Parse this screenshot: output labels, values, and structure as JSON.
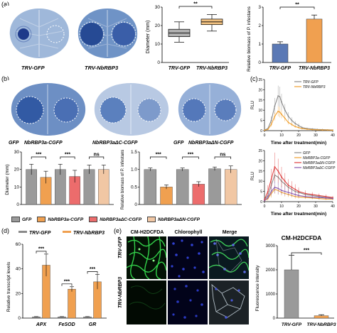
{
  "panel_labels": {
    "a": "(a)",
    "b": "(b)",
    "c": "(c)",
    "d": "(d)",
    "e": "(e)"
  },
  "panel_a": {
    "leaf_captions": [
      "TRV-GFP",
      "TRV-NbRBP3"
    ],
    "boxplot": {
      "ylabel": "Diameter (mm)",
      "yticks": [
        "0",
        "10",
        "20",
        "30"
      ],
      "categories": [
        "TRV-GFP",
        "TRV-NbRBP3"
      ],
      "significance": "**",
      "colors": [
        "#b0b0b0",
        "#f0c080"
      ]
    },
    "bar": {
      "ylabel": "Relative biomass of P. infestans",
      "yticks": [
        "0",
        "1",
        "2",
        "3"
      ],
      "categories": [
        "TRV-GFP",
        "TRV-NbRBP3"
      ],
      "significance": "**",
      "colors": [
        "#5b79b5",
        "#f0a050"
      ]
    }
  },
  "panel_b": {
    "leaf_captions": [
      "GFP",
      "NbRBP3a-CGFP",
      "NbRBP3aΔC-CGFP",
      "GFP",
      "NbRBP3aΔN-CGFP"
    ],
    "diameter": {
      "ylabel": "Diameter (mm)",
      "yticks": [
        "0",
        "10",
        "20",
        "30"
      ],
      "significance": [
        "***",
        "***",
        "ns"
      ]
    },
    "biomass": {
      "ylabel": "Relative biomass of P. infestans",
      "yticks": [
        "0",
        "0.5",
        "1.0",
        "1.5"
      ],
      "significance": [
        "***",
        "***",
        "ns"
      ]
    },
    "legend": [
      {
        "label": "GFP",
        "color": "#9a9a9a"
      },
      {
        "label": "NbRBP3a-CGFP",
        "color": "#f0a050"
      },
      {
        "label": "NbRBP3aΔC-CGFP",
        "color": "#ec6c6c"
      },
      {
        "label": "NbRBP3aΔN-CGFP",
        "color": "#f1c7a4"
      }
    ]
  },
  "panel_c": {
    "top": {
      "ylabel": "RLU",
      "yticks": [
        "0",
        "5",
        "10",
        "15",
        "20",
        "25"
      ],
      "xticks": [
        "0",
        "10",
        "20",
        "30",
        "40"
      ],
      "xlabel": "Time after treatment(min)",
      "legend": [
        {
          "label": "TRV-GFP",
          "color": "#8a8a8a"
        },
        {
          "label": "TRV-NbRBP3",
          "color": "#f0a030"
        }
      ]
    },
    "bottom": {
      "ylabel": "RLU",
      "yticks": [
        "0",
        "5",
        "10",
        "15",
        "20",
        "25"
      ],
      "xticks": [
        "0",
        "10",
        "20",
        "30",
        "40"
      ],
      "xlabel": "Time after treatment(min)",
      "legend": [
        {
          "label": "GFP",
          "color": "#8a8a8a"
        },
        {
          "label": "NbRBP3a-CGFP",
          "color": "#f0a030"
        },
        {
          "label": "NbRBP3aΔN-CGFP",
          "color": "#e04040"
        },
        {
          "label": "NbRBP3aΔC-CGFP",
          "color": "#8a5ab0"
        }
      ]
    }
  },
  "panel_d": {
    "legend": [
      {
        "label": "TRV-GFP",
        "color": "#8a8a8a"
      },
      {
        "label": "TRV-NbRBP3",
        "color": "#f0a050"
      }
    ],
    "ylabel": "Relative transcript levels",
    "yticks": [
      "0",
      "20",
      "40",
      "60"
    ],
    "categories": [
      "APX",
      "FeSOD",
      "GR"
    ],
    "significance": [
      "***",
      "***",
      "***"
    ]
  },
  "panel_e": {
    "column_titles": [
      "CM-H2DCFDA",
      "Chlorophyll",
      "Merge"
    ],
    "row_labels": [
      "TRV-GFP",
      "TRV-NbRBP3"
    ],
    "bar": {
      "title": "CM-H2DCFDA",
      "ylabel": "Fluorescence intensity",
      "yticks": [
        "0",
        "1000",
        "2000",
        "3000"
      ],
      "categories": [
        "TRV-GFP",
        "TRV-NbRBP3"
      ],
      "significance": "***"
    }
  },
  "chart_data": [
    {
      "id": "a-diameter",
      "type": "box",
      "categories": [
        "TRV-GFP",
        "TRV-NbRBP3"
      ],
      "ylim": [
        0,
        30
      ],
      "boxes": [
        {
          "min": 11,
          "q1": 14,
          "median": 16,
          "q3": 18,
          "max": 22
        },
        {
          "min": 17,
          "q1": 20.5,
          "median": 22,
          "q3": 23.5,
          "max": 26
        }
      ]
    },
    {
      "id": "a-biomass",
      "type": "bar",
      "categories": [
        "TRV-GFP",
        "TRV-NbRBP3"
      ],
      "values": [
        1.0,
        2.35
      ],
      "errors": [
        0.12,
        0.22
      ],
      "ylim": [
        0,
        3
      ]
    },
    {
      "id": "b-diameter",
      "type": "bar",
      "categories": [
        "GFP",
        "NbRBP3a-CGFP",
        "GFP",
        "NbRBP3aΔC-CGFP",
        "GFP",
        "NbRBP3aΔN-CGFP"
      ],
      "values": [
        20,
        15.5,
        20,
        16,
        20,
        20
      ],
      "errors": [
        3,
        3.5,
        3,
        3.5,
        2.5,
        2.5
      ],
      "ylim": [
        0,
        30
      ]
    },
    {
      "id": "b-biomass",
      "type": "bar",
      "categories": [
        "GFP",
        "NbRBP3a-CGFP",
        "GFP",
        "NbRBP3aΔC-CGFP",
        "GFP",
        "NbRBP3aΔN-CGFP"
      ],
      "values": [
        1.0,
        0.5,
        1.0,
        0.58,
        1.02,
        1.0
      ],
      "errors": [
        0.04,
        0.06,
        0.04,
        0.07,
        0.05,
        0.1
      ],
      "ylim": [
        0,
        1.5
      ]
    },
    {
      "id": "c-top",
      "type": "line",
      "xlim": [
        0,
        40
      ],
      "ylim": [
        0,
        25
      ],
      "series": [
        {
          "name": "TRV-GFP",
          "x": [
            0,
            2,
            4,
            6,
            8,
            9,
            10,
            12,
            14,
            16,
            18,
            20,
            22,
            25,
            28,
            31,
            34,
            37,
            40
          ],
          "y": [
            0.3,
            1,
            5,
            12,
            17,
            16.5,
            14,
            10,
            7,
            5,
            3.5,
            2.5,
            1.5,
            1,
            0.8,
            0.6,
            0.5,
            0.4,
            0.3
          ],
          "err": [
            0.2,
            0.5,
            2,
            4,
            5,
            5,
            4,
            3,
            2,
            1.5,
            1.2,
            1,
            0.8,
            0.5,
            0.4,
            0.3,
            0.3,
            0.2,
            0.2
          ]
        },
        {
          "name": "TRV-NbRBP3",
          "x": [
            0,
            2,
            4,
            6,
            8,
            9,
            10,
            12,
            14,
            16,
            18,
            20,
            22,
            25,
            28,
            31,
            34,
            37,
            40
          ],
          "y": [
            0.2,
            0.6,
            3,
            7,
            9.5,
            9,
            8,
            6,
            4,
            3,
            2,
            1.5,
            1,
            0.7,
            0.5,
            0.4,
            0.3,
            0.3,
            0.2
          ],
          "err": [
            0.1,
            0.3,
            1,
            2,
            2.5,
            2.5,
            2,
            1.5,
            1,
            0.8,
            0.6,
            0.5,
            0.4,
            0.3,
            0.2,
            0.2,
            0.2,
            0.1,
            0.1
          ]
        }
      ]
    },
    {
      "id": "c-bottom",
      "type": "line",
      "xlim": [
        0,
        40
      ],
      "ylim": [
        0,
        25
      ],
      "series": [
        {
          "name": "GFP",
          "x": [
            0,
            2,
            4,
            6,
            8,
            10,
            12,
            14,
            16,
            18,
            20,
            24,
            28,
            32,
            36,
            40
          ],
          "y": [
            1,
            3,
            8,
            13,
            12,
            10,
            8.5,
            7,
            6,
            5,
            4.5,
            3.5,
            3,
            2.5,
            2,
            1.8
          ],
          "err": [
            0.5,
            2,
            3,
            4,
            4,
            3,
            3,
            2.5,
            2,
            2,
            1.5,
            1.2,
            1,
            1,
            0.8,
            0.6
          ]
        },
        {
          "name": "NbRBP3a-CGFP",
          "x": [
            0,
            2,
            4,
            6,
            8,
            10,
            12,
            14,
            16,
            18,
            20,
            24,
            28,
            32,
            36,
            40
          ],
          "y": [
            0.5,
            1.5,
            4,
            6,
            5.5,
            4.5,
            4,
            3.5,
            3,
            2.5,
            2.3,
            2,
            1.8,
            1.5,
            1.3,
            1.2
          ],
          "err": [
            0.3,
            1,
            2,
            2,
            2,
            1.5,
            1.5,
            1.2,
            1,
            1,
            0.8,
            0.7,
            0.6,
            0.5,
            0.5,
            0.4
          ]
        },
        {
          "name": "NbRBP3aΔN-CGFP",
          "x": [
            0,
            2,
            4,
            6,
            8,
            10,
            12,
            14,
            16,
            18,
            20,
            24,
            28,
            32,
            36,
            40
          ],
          "y": [
            1,
            5,
            11,
            17,
            15,
            12,
            10,
            8,
            7,
            6,
            5,
            4,
            3.5,
            3,
            2.5,
            2
          ],
          "err": [
            0.5,
            3,
            5,
            7,
            6,
            5,
            4,
            3,
            3,
            2.5,
            2,
            1.5,
            1.2,
            1,
            1,
            0.8
          ]
        },
        {
          "name": "NbRBP3aΔC-CGFP",
          "x": [
            0,
            2,
            4,
            6,
            8,
            10,
            12,
            14,
            16,
            18,
            20,
            24,
            28,
            32,
            36,
            40
          ],
          "y": [
            0.5,
            2,
            5,
            7,
            6.5,
            5.5,
            5,
            4.5,
            4,
            3.5,
            3,
            2.5,
            2.2,
            2,
            1.8,
            1.5
          ],
          "err": [
            0.3,
            1,
            2,
            3,
            3,
            2,
            2,
            1.5,
            1.5,
            1.2,
            1,
            0.8,
            0.7,
            0.6,
            0.5,
            0.5
          ]
        }
      ]
    },
    {
      "id": "d-transcript",
      "type": "bar",
      "categories": [
        "APX",
        "FeSOD",
        "GR"
      ],
      "series": [
        {
          "name": "TRV-GFP",
          "values": [
            1,
            1,
            1
          ],
          "errors": [
            0.2,
            0.2,
            0.2
          ]
        },
        {
          "name": "TRV-NbRBP3",
          "values": [
            43,
            23.5,
            29.5
          ],
          "errors": [
            9,
            2,
            6
          ]
        }
      ],
      "ylim": [
        0,
        60
      ]
    },
    {
      "id": "e-fluorescence",
      "type": "bar",
      "categories": [
        "TRV-GFP",
        "TRV-NbRBP3"
      ],
      "values": [
        2000,
        100
      ],
      "errors": [
        600,
        40
      ],
      "ylim": [
        0,
        3000
      ]
    }
  ]
}
